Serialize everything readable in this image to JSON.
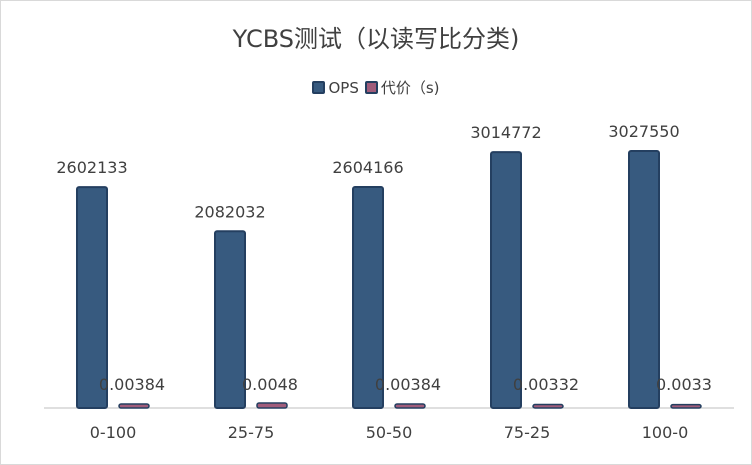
{
  "chart_data": {
    "type": "bar",
    "title": "YCBS测试（以读写比分类)",
    "categories": [
      "0-100",
      "25-75",
      "50-50",
      "75-25",
      "100-0"
    ],
    "series": [
      {
        "name": "OPS",
        "values": [
          2602133,
          2082032,
          2604166,
          3014772,
          3027550
        ],
        "labels": [
          "2602133",
          "2082032",
          "2604166",
          "3014772",
          "3027550"
        ],
        "color": "#375a7f"
      },
      {
        "name": "代价（s)",
        "values": [
          0.00384,
          0.0048,
          0.00384,
          0.00332,
          0.0033
        ],
        "labels": [
          "0.00384",
          "0.0048",
          "0.00384",
          "0.00332",
          "0.0033"
        ],
        "color": "#a05c7b"
      }
    ],
    "ylim": [
      0,
      3500000
    ],
    "grid": false,
    "legend_position": "top-center"
  },
  "colors": {
    "bar_border": "#243f60",
    "axis": "#bfbfbf"
  }
}
